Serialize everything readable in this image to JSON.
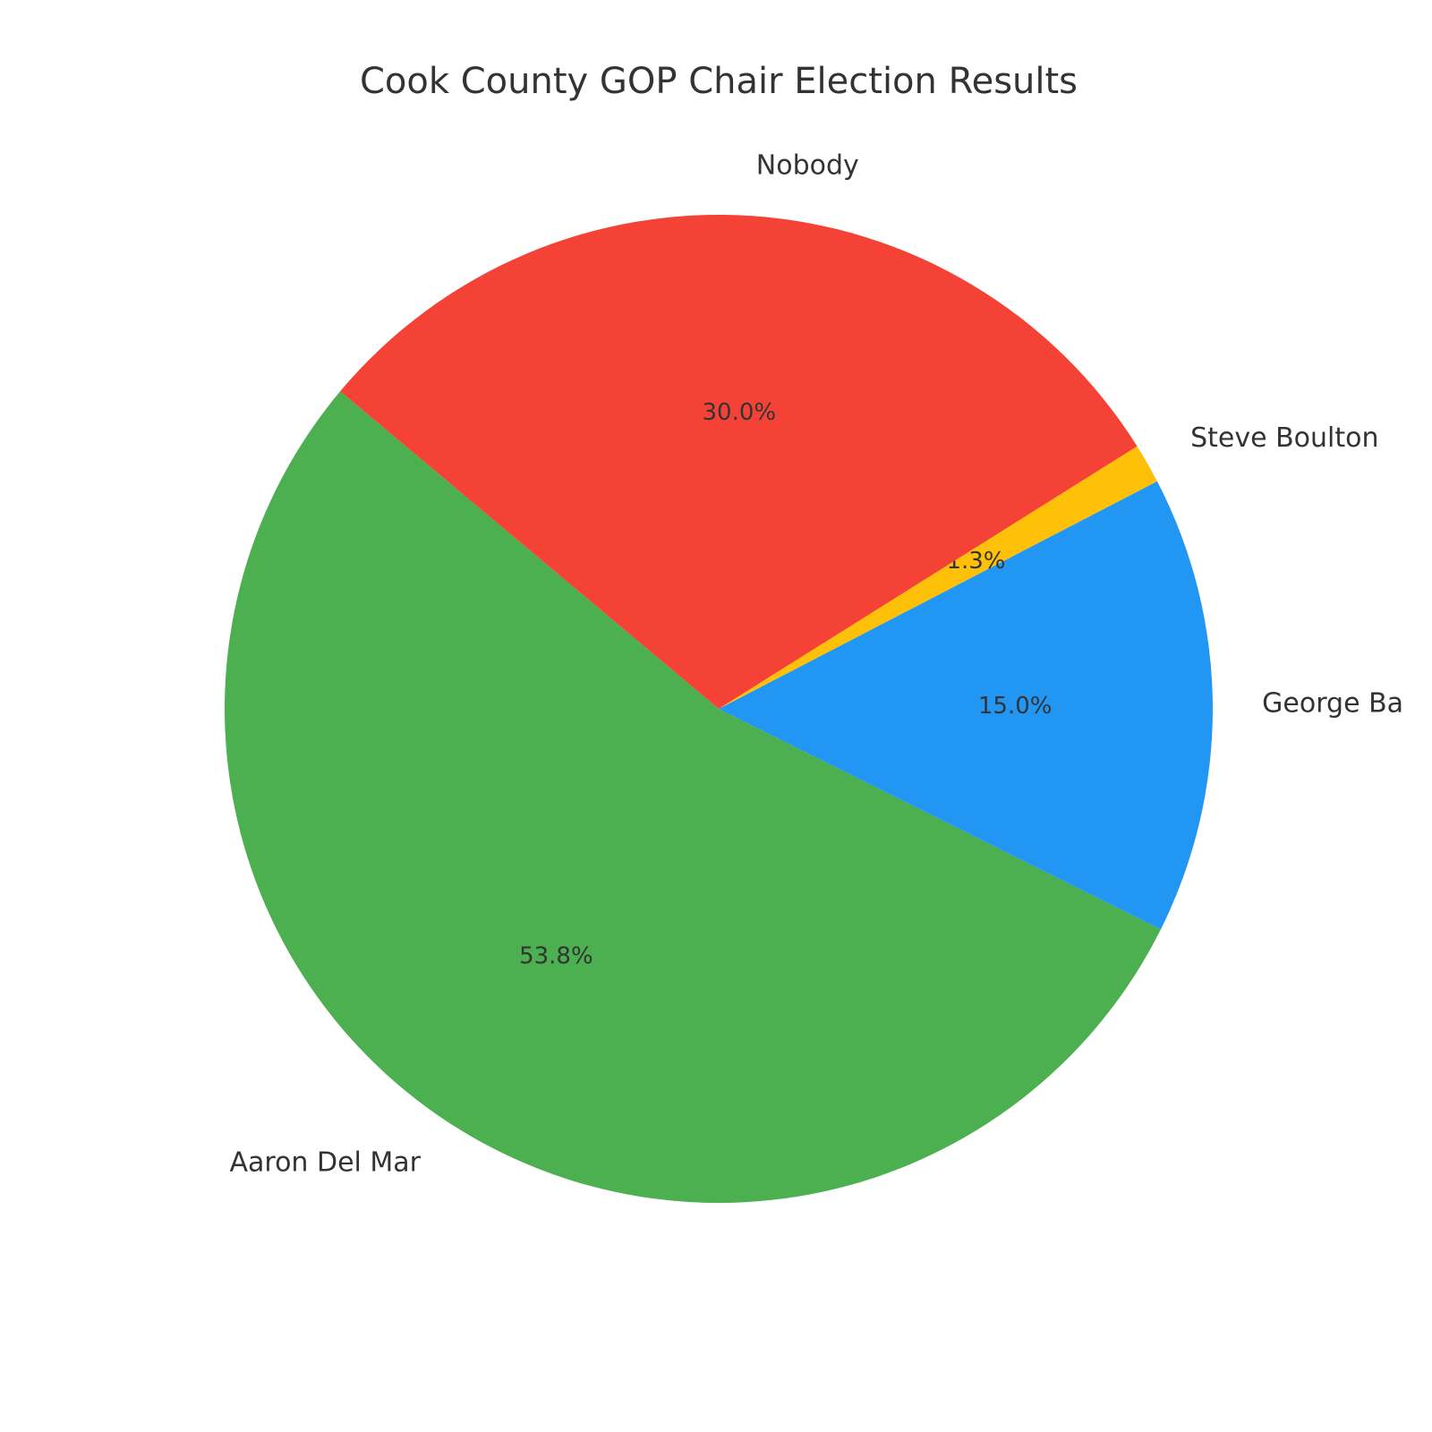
{
  "chart_data": {
    "type": "pie",
    "title": "Cook County GOP Chair Election Results",
    "categories": [
      "Aaron Del Mar",
      "George Ba",
      "Steve Boulton",
      "Nobody"
    ],
    "values": [
      53.8,
      15.0,
      1.3,
      30.0
    ],
    "value_labels": [
      "53.8%",
      "15.0%",
      "1.3%",
      "30.0%"
    ],
    "colors": [
      "#4caf50",
      "#2196f3",
      "#ffc107",
      "#f44336"
    ],
    "start_angle": 140
  }
}
